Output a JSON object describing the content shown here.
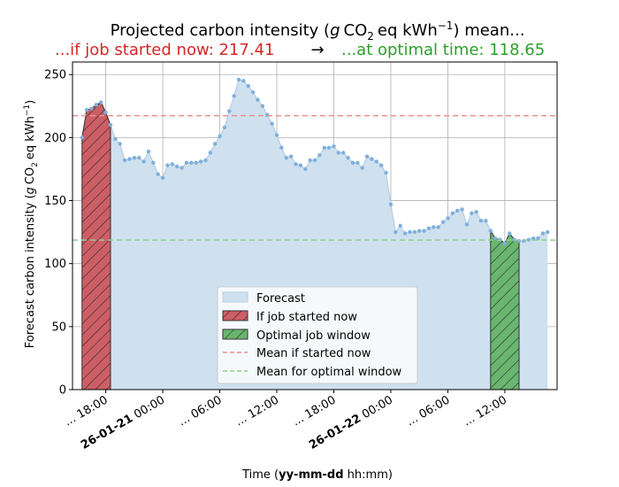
{
  "chart_data": {
    "type": "area",
    "title": "Projected carbon intensity (g CO₂ eq kWh⁻¹) mean...",
    "title_prefix": "Projected carbon intensity (",
    "title_suffix": ") mean...",
    "subtitle_now_prefix": "...if job started now: ",
    "subtitle_now_value": "217.41",
    "arrow": "→",
    "subtitle_opt_prefix": "...at optimal time: ",
    "subtitle_opt_value": "118.65",
    "ylabel_prefix": "Forecast carbon intensity (",
    "ylabel_suffix": ")",
    "xlabel_prefix": "Time (",
    "xlabel_format": "yy-mm-dd",
    "xlabel_suffix": " hh:mm)",
    "ylim": [
      0,
      260
    ],
    "yticks": [
      0,
      50,
      100,
      150,
      200,
      250
    ],
    "xlim": [
      14.5,
      65.5
    ],
    "xticks": [
      {
        "pos": 18,
        "date": "",
        "time": "... 18:00"
      },
      {
        "pos": 24,
        "date": "26-01-21",
        "time": " 00:00"
      },
      {
        "pos": 30,
        "date": "",
        "time": "... 06:00"
      },
      {
        "pos": 36,
        "date": "",
        "time": "... 12:00"
      },
      {
        "pos": 42,
        "date": "",
        "time": "... 18:00"
      },
      {
        "pos": 48,
        "date": "26-01-22",
        "time": " 00:00"
      },
      {
        "pos": 54,
        "date": "",
        "time": "... 06:00"
      },
      {
        "pos": 60,
        "date": "",
        "time": "... 12:00"
      }
    ],
    "x_start": 15.5,
    "x_step": 0.5,
    "forecast_values": [
      200,
      222,
      223,
      226,
      228,
      220,
      210,
      199,
      195,
      182,
      183,
      184,
      184,
      181,
      189,
      180,
      171,
      168,
      178,
      179,
      177,
      176,
      180,
      180,
      180,
      181,
      182,
      188,
      195,
      201,
      208,
      221,
      233,
      246,
      245,
      241,
      236,
      230,
      225,
      218,
      211,
      202,
      192,
      184,
      185,
      179,
      178,
      175,
      182,
      182,
      186,
      192,
      192,
      193,
      188,
      188,
      184,
      180,
      180,
      176,
      185,
      183,
      181,
      178,
      172,
      147,
      125,
      130,
      124,
      125,
      125,
      126,
      126,
      128,
      129,
      129,
      133,
      136,
      140,
      142,
      143,
      131,
      140,
      141,
      134,
      134,
      126,
      120,
      119,
      116,
      124,
      119,
      118,
      118,
      119,
      120,
      120,
      124,
      125
    ],
    "now_window": [
      15.5,
      18.5
    ],
    "optimal_window": [
      58.5,
      61.5
    ],
    "mean_now": 217.41,
    "mean_optimal": 118.65,
    "legend": [
      "Forecast",
      "If job started now",
      "Optimal job window",
      "Mean if started now",
      "Mean for optimal window"
    ],
    "legend_position": "lower-center",
    "grid": true,
    "colors": {
      "forecast_fill": "#cfe0ee",
      "forecast_line": "#b6cfe6",
      "forecast_marker": "#7fb0dc",
      "now_fill": "#cc5e66",
      "optimal_fill": "#6ab56f",
      "mean_now_line": "#f08f8f",
      "mean_opt_line": "#8fcf8f",
      "now_text": "#d62728",
      "opt_text": "#2ca02c",
      "grid": "#b0b0b0"
    }
  }
}
